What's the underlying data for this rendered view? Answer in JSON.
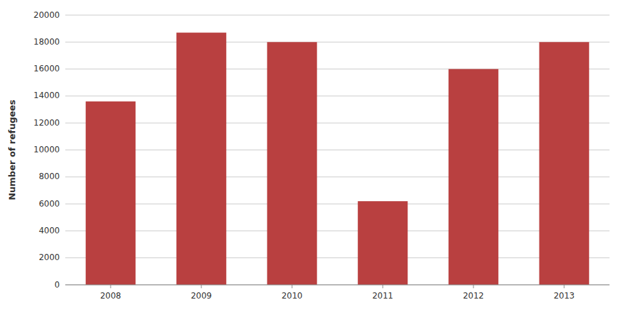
{
  "chart_data": {
    "type": "bar",
    "categories": [
      "2008",
      "2009",
      "2010",
      "2011",
      "2012",
      "2013"
    ],
    "values": [
      13600,
      18700,
      18000,
      6200,
      16000,
      18000
    ],
    "color": "#b94040",
    "ylabel": "Number of refugees",
    "ylim": [
      0,
      20000
    ],
    "yticks": [
      0,
      2000,
      4000,
      6000,
      8000,
      10000,
      12000,
      14000,
      16000,
      18000,
      20000
    ],
    "grid": true
  }
}
